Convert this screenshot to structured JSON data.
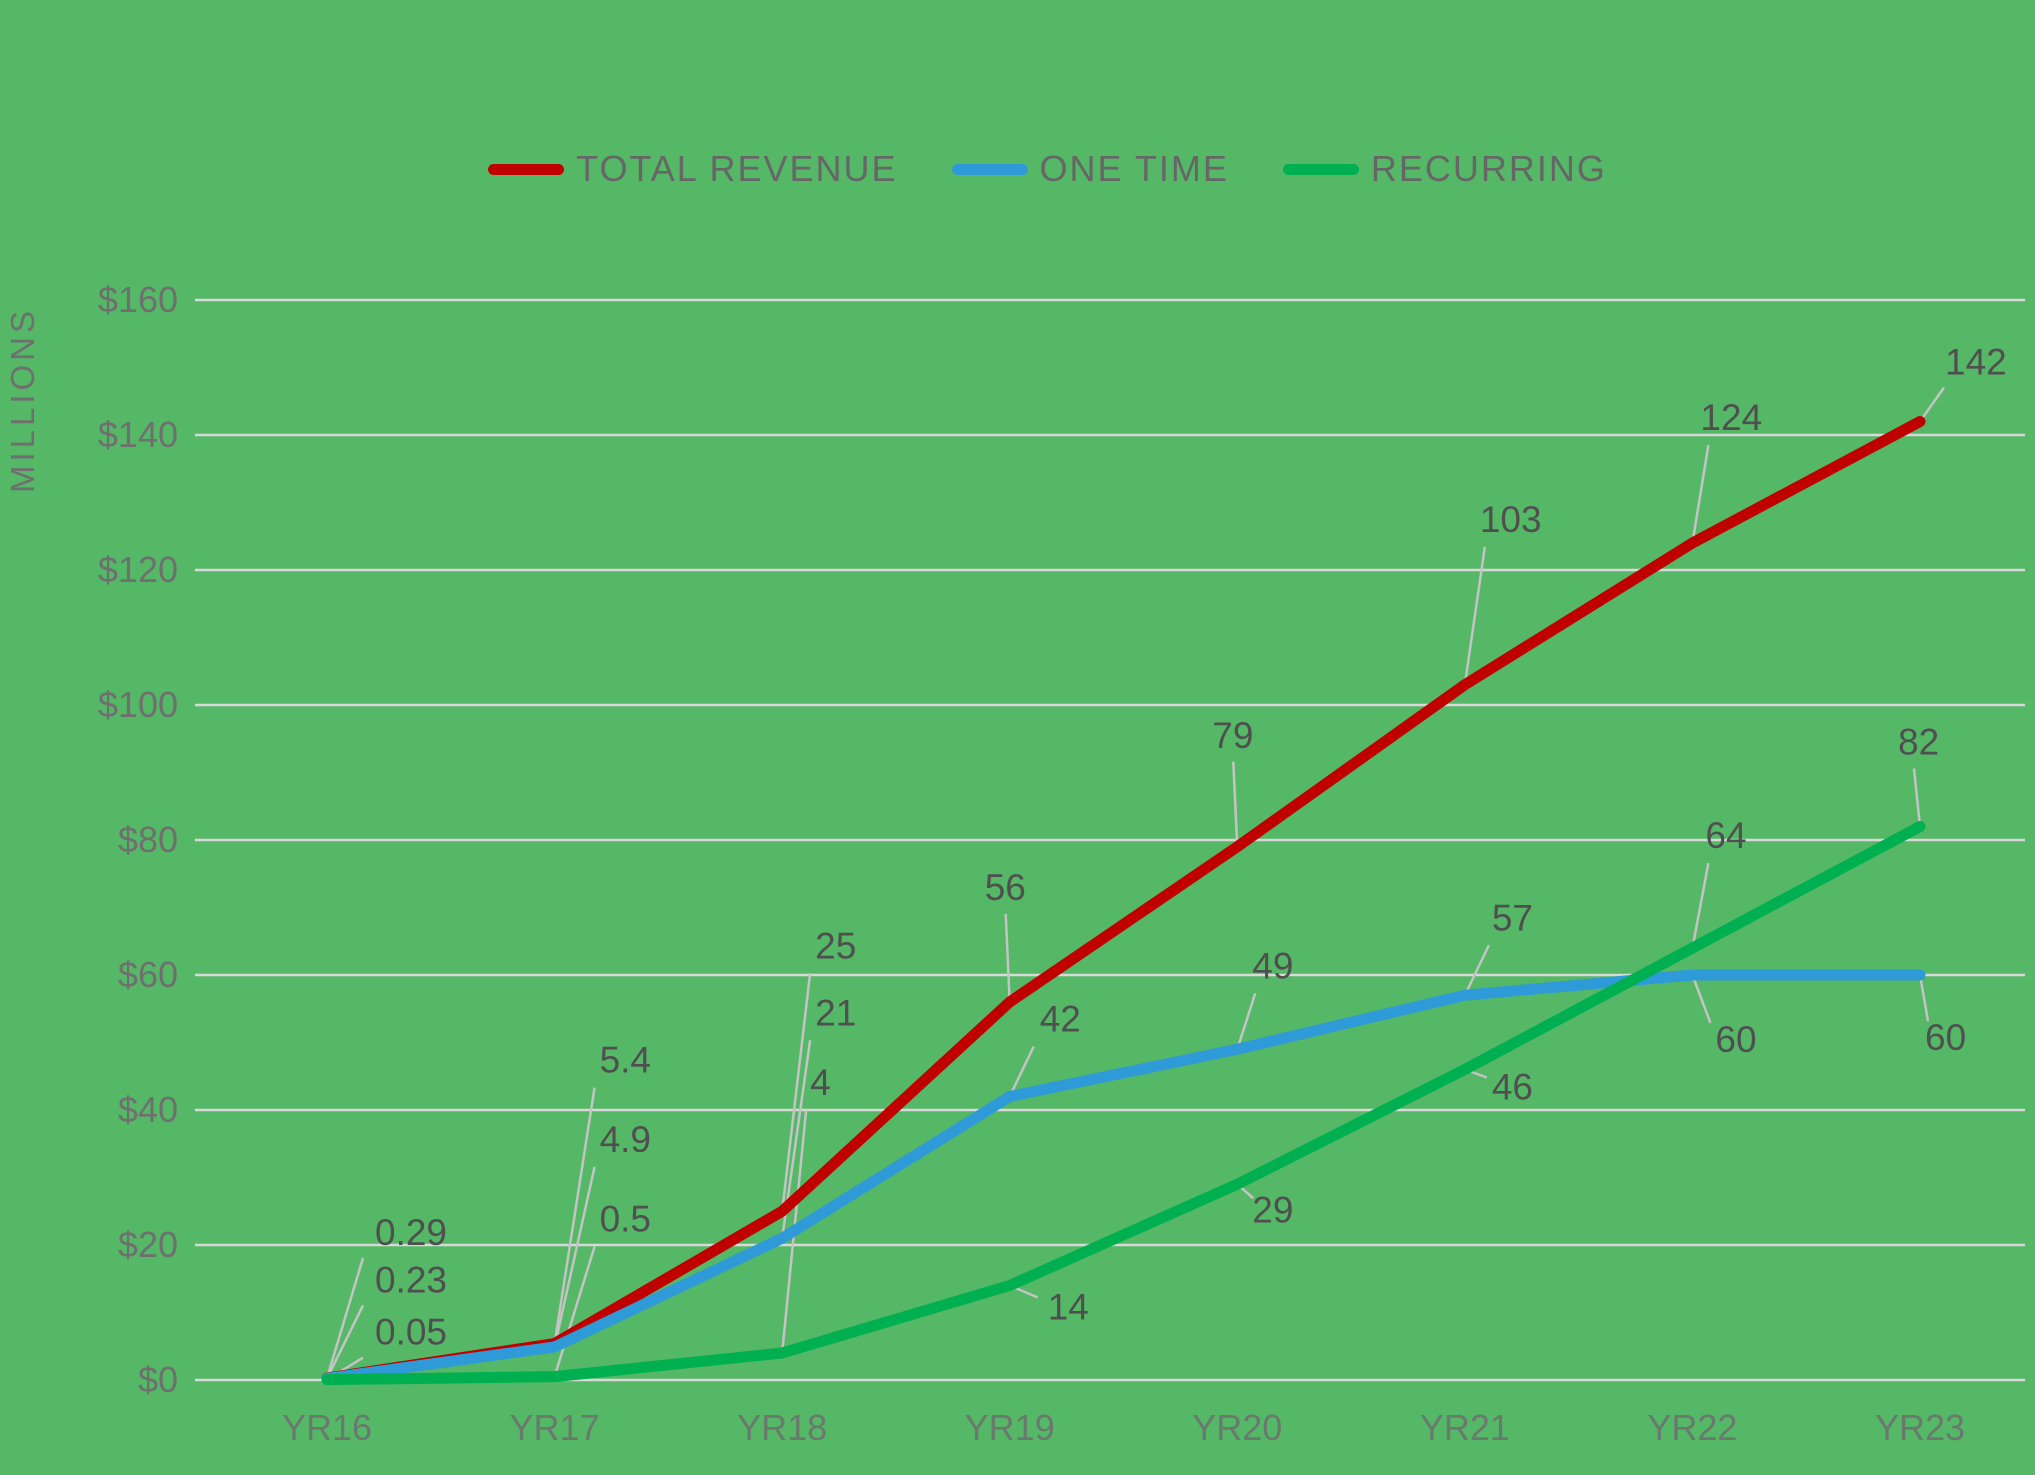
{
  "chart_data": {
    "type": "line",
    "title": "",
    "ylabel": "MILLIONS",
    "xlabel": "",
    "categories": [
      "YR16",
      "YR17",
      "YR18",
      "YR19",
      "YR20",
      "YR21",
      "YR22",
      "YR23"
    ],
    "series": [
      {
        "name": "TOTAL REVENUE",
        "color": "#c00000",
        "values": [
          0.29,
          5.4,
          25,
          56,
          79,
          103,
          124,
          142
        ]
      },
      {
        "name": "ONE TIME",
        "color": "#2e9ad8",
        "values": [
          0.23,
          4.9,
          21,
          42,
          49,
          57,
          60,
          60
        ]
      },
      {
        "name": "RECURRING",
        "color": "#00b050",
        "values": [
          0.05,
          0.5,
          4,
          14,
          29,
          46,
          64,
          82
        ]
      }
    ],
    "y_ticks": {
      "values": [
        0,
        20,
        40,
        60,
        80,
        100,
        120,
        140,
        160
      ],
      "labels": [
        "$0",
        "$20",
        "$40",
        "$60",
        "$80",
        "$100",
        "$120",
        "$140",
        "$160"
      ]
    },
    "ylim": [
      0,
      160
    ],
    "grid": "horizontal-only",
    "legend_position": "top",
    "data_labels": true
  },
  "styles": {
    "background": "#54b867",
    "gridline": "#d9d9d9",
    "axis_text": "#6f6f6f",
    "data_label_text": "#4f4f4f",
    "legend_text": "#666666",
    "leader_line": "#c4c4c4"
  }
}
